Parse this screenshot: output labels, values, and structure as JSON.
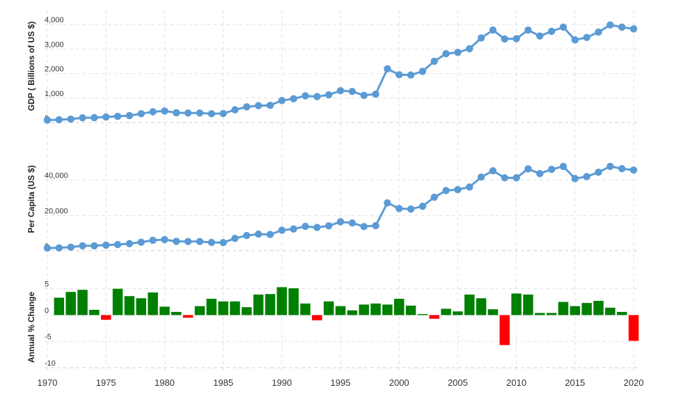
{
  "x_axis": {
    "ticks": [
      "1970",
      "1975",
      "1980",
      "1985",
      "1990",
      "1995",
      "2000",
      "2005",
      "2010",
      "2015",
      "2020"
    ],
    "range": [
      1970,
      2020
    ]
  },
  "colors": {
    "line": "#5b9bd5",
    "positive_bar": "#008000",
    "negative_bar": "#ff0000",
    "grid": "#e2e2e2"
  },
  "chart_data": [
    {
      "type": "line",
      "ylabel": "GDP ( Billions of US $)",
      "ylim": [
        0,
        4600
      ],
      "y_ticks": [
        {
          "value": 0,
          "label": "0"
        },
        {
          "value": 1000,
          "label": "1,000"
        },
        {
          "value": 2000,
          "label": "2,000"
        },
        {
          "value": 3000,
          "label": "3,000"
        },
        {
          "value": 4000,
          "label": "4,000"
        }
      ],
      "grid": true,
      "x": [
        1970,
        1971,
        1972,
        1973,
        1974,
        1975,
        1976,
        1977,
        1978,
        1979,
        1980,
        1981,
        1982,
        1983,
        1984,
        1985,
        1986,
        1987,
        1988,
        1989,
        1990,
        1991,
        1992,
        1993,
        1994,
        1995,
        1996,
        1997,
        1998,
        1999,
        2000,
        2001,
        2002,
        2003,
        2004,
        2005,
        2006,
        2007,
        2008,
        2009,
        2010,
        2011,
        2012,
        2013,
        2014,
        2015,
        2016,
        2017,
        2018,
        2019,
        2020
      ],
      "values": [
        100,
        115,
        140,
        195,
        200,
        230,
        255,
        285,
        360,
        440,
        470,
        400,
        390,
        390,
        360,
        370,
        520,
        640,
        690,
        700,
        900,
        970,
        1090,
        1060,
        1130,
        1300,
        1270,
        1110,
        1160,
        2190,
        1950,
        1940,
        2090,
        2500,
        2810,
        2860,
        3010,
        3450,
        3770,
        3410,
        3420,
        3770,
        3530,
        3720,
        3890,
        3370,
        3470,
        3690,
        3980,
        3890,
        3820
      ]
    },
    {
      "type": "line",
      "ylabel": "Per Capita (US $)",
      "ylim": [
        0,
        60000
      ],
      "y_ticks": [
        {
          "value": 0,
          "label": "0"
        },
        {
          "value": 20000,
          "label": "20,000"
        },
        {
          "value": 40000,
          "label": "40,000"
        }
      ],
      "grid": true,
      "x": [
        1970,
        1971,
        1972,
        1973,
        1974,
        1975,
        1976,
        1977,
        1978,
        1979,
        1980,
        1981,
        1982,
        1983,
        1984,
        1985,
        1986,
        1987,
        1988,
        1989,
        1990,
        1991,
        1992,
        1993,
        1994,
        1995,
        1996,
        1997,
        1998,
        1999,
        2000,
        2001,
        2002,
        2003,
        2004,
        2005,
        2006,
        2007,
        2008,
        2009,
        2010,
        2011,
        2012,
        2013,
        2014,
        2015,
        2016,
        2017,
        2018,
        2019,
        2020
      ],
      "values": [
        1500,
        1600,
        2000,
        2800,
        2800,
        3200,
        3500,
        4000,
        4800,
        5900,
        6300,
        5300,
        5200,
        5200,
        4700,
        4600,
        7000,
        8600,
        9400,
        9200,
        11600,
        12300,
        13800,
        13200,
        14100,
        16400,
        15700,
        13700,
        14200,
        27100,
        23900,
        23600,
        25200,
        30300,
        34100,
        34600,
        36100,
        41700,
        45300,
        41300,
        41300,
        46400,
        43700,
        46100,
        47800,
        40900,
        42000,
        44500,
        47800,
        46500,
        45700
      ]
    },
    {
      "type": "bar",
      "ylabel": "Annual % Change",
      "ylim": [
        -10,
        8
      ],
      "y_ticks": [
        {
          "value": -10,
          "label": "-10"
        },
        {
          "value": -5,
          "label": "-5"
        },
        {
          "value": 0,
          "label": "0"
        },
        {
          "value": 5,
          "label": "5"
        }
      ],
      "grid": true,
      "x": [
        1971,
        1972,
        1973,
        1974,
        1975,
        1976,
        1977,
        1978,
        1979,
        1980,
        1981,
        1982,
        1983,
        1984,
        1985,
        1986,
        1987,
        1988,
        1989,
        1990,
        1991,
        1992,
        1993,
        1994,
        1995,
        1996,
        1997,
        1998,
        1999,
        2000,
        2001,
        2002,
        2003,
        2004,
        2005,
        2006,
        2007,
        2008,
        2009,
        2010,
        2011,
        2012,
        2013,
        2014,
        2015,
        2016,
        2017,
        2018,
        2019,
        2020
      ],
      "values": [
        3.3,
        4.4,
        4.8,
        1.0,
        -0.9,
        5.0,
        3.6,
        3.2,
        4.3,
        1.6,
        0.6,
        -0.5,
        1.7,
        3.1,
        2.6,
        2.6,
        1.5,
        3.9,
        4.0,
        5.3,
        5.1,
        2.2,
        -1.0,
        2.6,
        1.7,
        0.9,
        2.0,
        2.2,
        2.0,
        3.1,
        1.8,
        0.2,
        -0.7,
        1.2,
        0.7,
        3.9,
        3.2,
        1.1,
        -5.7,
        4.1,
        3.9,
        0.4,
        0.4,
        2.5,
        1.7,
        2.3,
        2.7,
        1.4,
        0.6,
        -4.9
      ]
    }
  ]
}
